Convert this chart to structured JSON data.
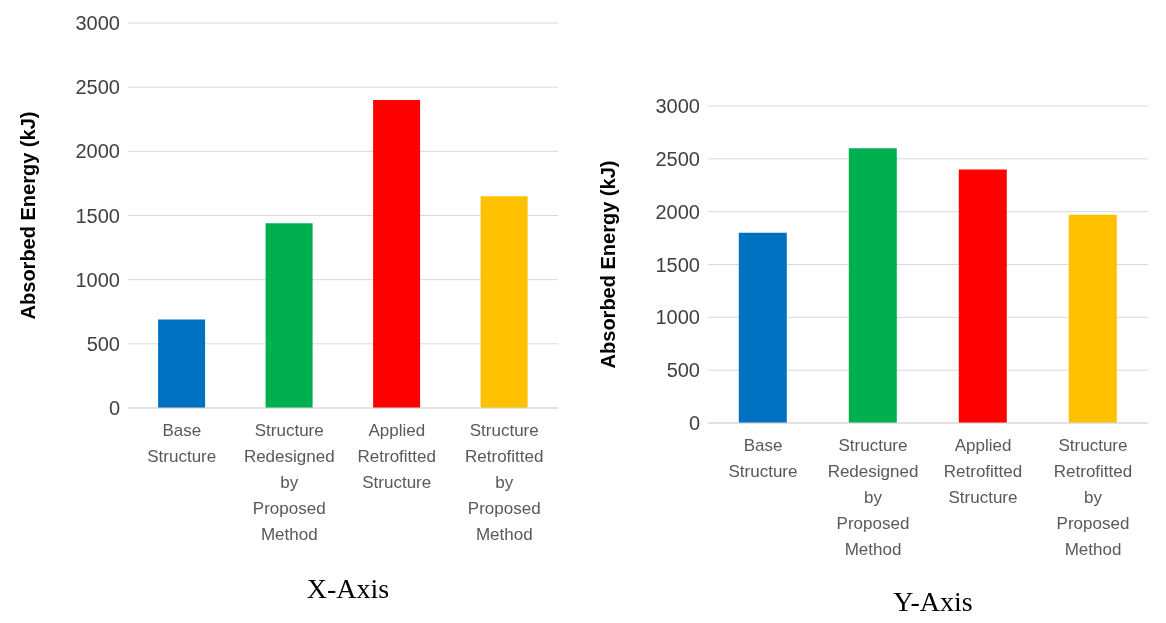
{
  "chart_data": [
    {
      "type": "bar",
      "title": "X-Axis",
      "ylabel": "Absorbed Energy (kJ)",
      "categories": [
        "Base Structure",
        "Structure Redesigned by Proposed Method",
        "Applied Retrofitted Structure",
        "Structure Retrofitted by Proposed Method"
      ],
      "values": [
        690,
        1440,
        2400,
        1650
      ],
      "colors": [
        "#0070c0",
        "#00b050",
        "#ff0000",
        "#ffc000"
      ],
      "ylim": [
        0,
        3000
      ],
      "yticks": [
        0,
        500,
        1000,
        1500,
        2000,
        2500,
        3000
      ],
      "grid": "y",
      "legend": false
    },
    {
      "type": "bar",
      "title": "Y-Axis",
      "ylabel": "Absorbed Energy (kJ)",
      "categories": [
        "Base Structure",
        "Structure Redesigned by Proposed Method",
        "Applied Retrofitted Structure",
        "Structure Retrofitted by Proposed Method"
      ],
      "values": [
        1800,
        2600,
        2400,
        1970
      ],
      "colors": [
        "#0070c0",
        "#00b050",
        "#ff0000",
        "#ffc000"
      ],
      "ylim": [
        0,
        3000
      ],
      "yticks": [
        0,
        500,
        1000,
        1500,
        2000,
        2500,
        3000
      ],
      "grid": "y",
      "legend": false
    }
  ]
}
